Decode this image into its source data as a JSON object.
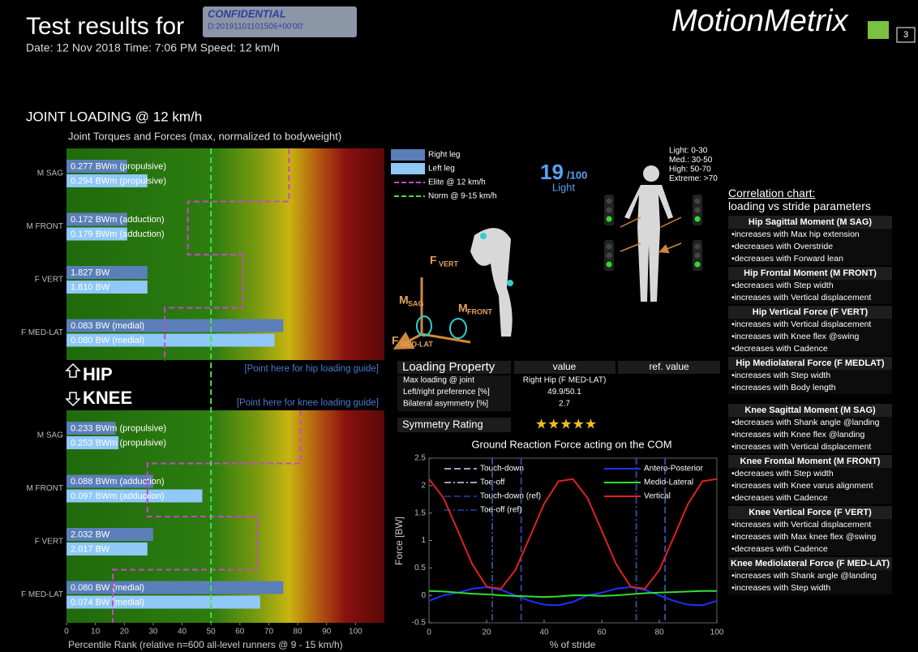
{
  "header": {
    "title": "Test results for",
    "confidential": "CONFIDENTIAL",
    "document_id": "D:20191101101506+00'00'",
    "info": "Date: 12 Nov 2018  Time:  7:06 PM  Speed: 12 km/h",
    "logo": "MotionMetrix",
    "page": "3"
  },
  "joint_loading": {
    "section_title": "JOINT LOADING @ 12 km/h",
    "chart": {
      "type": "bar",
      "title": "Joint Torques and Forces (max, normalized to bodyweight)",
      "x_label": "Percentile Rank (relative n=600 all-level runners @ 9 - 15 km/h)",
      "xlim": [
        0,
        110
      ],
      "xticks": [
        0,
        10,
        20,
        30,
        40,
        50,
        60,
        70,
        80,
        90,
        100
      ],
      "norm": 50,
      "legend": [
        {
          "name": "Right leg",
          "color": "#5b7fb8"
        },
        {
          "name": "Left leg",
          "color": "#90c8f8"
        },
        {
          "name": "Elite @ 12 km/h",
          "color": "#c848c8"
        },
        {
          "name": "Norm @ 9-15 km/h",
          "color": "#48e048"
        }
      ],
      "groups": [
        {
          "name": "HIP",
          "link": "[Point here for hip loading guide]",
          "rows": [
            {
              "label": "M SAG",
              "right": {
                "value": 21,
                "label": "0.277 BWm (propulsive)"
              },
              "left": {
                "value": 28,
                "label": "0.294 BWm (propulsive)"
              },
              "elite": 77
            },
            {
              "label": "M FRONT",
              "right": {
                "value": 21,
                "label": "0.172 BWm (adduction)"
              },
              "left": {
                "value": 21,
                "label": "0.179 BWm (adduction)"
              },
              "elite": 42
            },
            {
              "label": "F VERT",
              "right": {
                "value": 28,
                "label": "1.827 BW"
              },
              "left": {
                "value": 28,
                "label": "1.810 BW"
              },
              "elite": 61
            },
            {
              "label": "F MED-LAT",
              "right": {
                "value": 75,
                "label": "0.083 BW  (medial)"
              },
              "left": {
                "value": 72,
                "label": "0.080 BW  (medial)"
              },
              "elite": 34
            }
          ]
        },
        {
          "name": "KNEE",
          "link": "[Point here for knee loading guide]",
          "rows": [
            {
              "label": "M SAG",
              "right": {
                "value": 17,
                "label": "0.233 BWm (propulsive)"
              },
              "left": {
                "value": 18,
                "label": "0.253 BWm (propulsive)"
              },
              "elite": 81
            },
            {
              "label": "M FRONT",
              "right": {
                "value": 30,
                "label": "0.088 BWm (adduction)"
              },
              "left": {
                "value": 47,
                "label": "0.097 BWm (adduction)"
              },
              "elite": 28
            },
            {
              "label": "F VERT",
              "right": {
                "value": 30,
                "label": "2.032 BW"
              },
              "left": {
                "value": 28,
                "label": "2.017 BW"
              },
              "elite": 66
            },
            {
              "label": "F MED-LAT",
              "right": {
                "value": 75,
                "label": "0.080 BW  (medial)"
              },
              "left": {
                "value": 67,
                "label": "0.074 BW  (medial)"
              },
              "elite": 16
            }
          ]
        }
      ]
    }
  },
  "score": {
    "value": 19,
    "max": "/100",
    "level": "Light",
    "scale": [
      "Light: 0-30",
      "Med.: 30-50",
      "High: 50-70",
      "Extreme: >70"
    ]
  },
  "force_diagram": {
    "labels": [
      {
        "main": "F",
        "sub": "VERT"
      },
      {
        "main": "M",
        "sub": "SAG"
      },
      {
        "main": "M",
        "sub": "FRONT"
      },
      {
        "main": "F",
        "sub": "MED-LAT"
      }
    ]
  },
  "loading_property": {
    "headers": [
      "Loading Property",
      "value",
      "ref. value"
    ],
    "rows": [
      [
        "Max loading @ joint",
        "Right Hip (F MED-LAT)"
      ],
      [
        "Left/right preference [%]",
        "49.9/50.1"
      ],
      [
        "Bilateral asymmetry [%]",
        "2.7"
      ]
    ],
    "symmetry_label": "Symmetry Rating",
    "symmetry_stars": 5
  },
  "grf_chart": {
    "type": "line",
    "title": "Ground Reaction Force acting on the COM",
    "x_label": "% of stride",
    "y_label": "Force [BW]",
    "xlim": [
      0,
      100
    ],
    "ylim": [
      -0.5,
      2.5
    ],
    "xticks": [
      0,
      20,
      40,
      60,
      80,
      100
    ],
    "yticks": [
      -0.5,
      0,
      0.5,
      1,
      1.5,
      2,
      2.5
    ],
    "x": [
      0,
      5,
      10,
      15,
      20,
      25,
      30,
      35,
      40,
      45,
      50,
      55,
      60,
      65,
      70,
      75,
      80,
      85,
      90,
      95,
      100
    ],
    "events": [
      {
        "name": "Touch-down",
        "color": "#c8d8ff",
        "dash": "8 4",
        "values": [
          32,
          82
        ]
      },
      {
        "name": "Toe-off",
        "color": "#c8d8ff",
        "dash": "8 3 2 3",
        "values": [
          22,
          72
        ]
      },
      {
        "name": "Touch-down (ref)",
        "color": "#2840a8",
        "dash": "8 4",
        "values": [
          32,
          82
        ]
      },
      {
        "name": "Toe-off (ref)",
        "color": "#2840a8",
        "dash": "8 3 2 3",
        "values": [
          22,
          72
        ]
      }
    ],
    "series": [
      {
        "name": "Antero-Posterior",
        "color": "#2030ff",
        "values": [
          -0.1,
          0,
          0.05,
          0.12,
          0.15,
          0.1,
          0,
          -0.1,
          -0.17,
          -0.18,
          -0.12,
          0,
          0.05,
          0.12,
          0.15,
          0.1,
          0,
          -0.1,
          -0.17,
          -0.18,
          -0.1
        ]
      },
      {
        "name": "Medio-Lateral",
        "color": "#30e030",
        "values": [
          0.08,
          0.07,
          0.05,
          0.03,
          0.02,
          0,
          -0.01,
          -0.02,
          -0.03,
          -0.02,
          0,
          0,
          -0.01,
          0,
          0.02,
          0.04,
          0.05,
          0.06,
          0.07,
          0.08,
          0.08
        ]
      },
      {
        "name": "Vertical",
        "color": "#e02020",
        "values": [
          2.12,
          1.78,
          1.18,
          0.57,
          0.16,
          0.12,
          0.46,
          1.06,
          1.67,
          2.08,
          2.12,
          1.78,
          1.18,
          0.57,
          0.16,
          0.12,
          0.46,
          1.06,
          1.67,
          2.08,
          2.12
        ]
      }
    ]
  },
  "correlation": {
    "title": "Correlation chart:",
    "subtitle": "loading vs stride parameters",
    "sections": [
      {
        "heading": "Hip Sagittal Moment (M SAG)",
        "items": [
          "increases with Max hip extension",
          "decreases with Overstride",
          "decreases with Forward lean"
        ]
      },
      {
        "heading": "Hip Frontal Moment (M FRONT)",
        "items": [
          "decreases with Step width",
          "increases with Vertical displacement"
        ]
      },
      {
        "heading": "Hip Vertical Force (F VERT)",
        "items": [
          "increases with Vertical displacement",
          "increases with Knee flex @swing",
          "decreases with Cadence"
        ]
      },
      {
        "heading": "Hip Mediolateral Force (F MEDLAT)",
        "items": [
          "increases with Step width",
          "increases with Body length"
        ]
      },
      {
        "heading": "Knee Sagittal Moment (M SAG)",
        "items": [
          "decreases with Shank angle @landing",
          "increases with Knee flex @landing",
          "increases with Vertical displacement"
        ]
      },
      {
        "heading": "Knee Frontal Moment (M FRONT)",
        "items": [
          "decreases with Step width",
          "increases with Knee varus alignment",
          "decreases with Cadence"
        ]
      },
      {
        "heading": "Knee Vertical Force (F VERT)",
        "items": [
          "increases with Vertical displacement",
          "increases with Max knee flex @swing",
          "decreases with Cadence"
        ]
      },
      {
        "heading": "Knee Mediolateral Force (F MED-LAT)",
        "items": [
          "increases with Shank angle @landing",
          "increases with Step width"
        ]
      }
    ]
  }
}
